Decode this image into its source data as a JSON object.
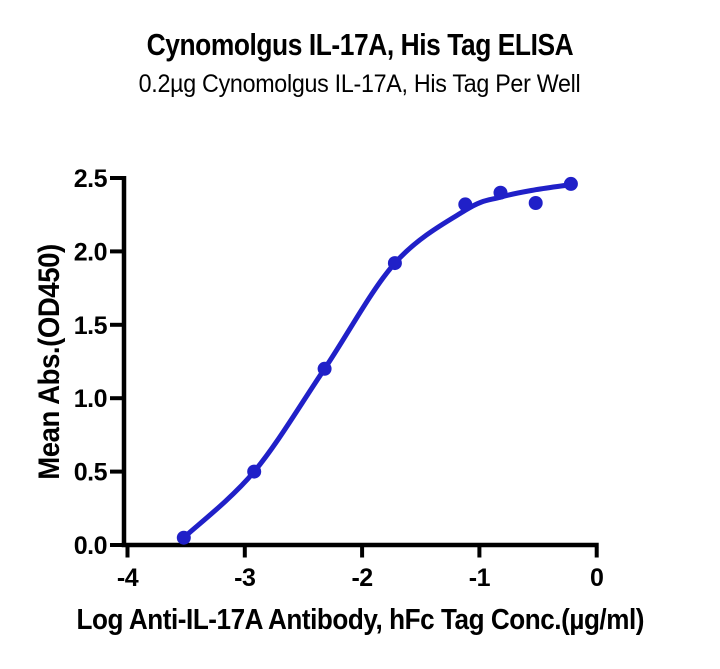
{
  "page": {
    "background_color": "#ffffff",
    "text_color": "#000000"
  },
  "chart_data": {
    "type": "scatter",
    "title": "Cynomolgus IL-17A, His Tag ELISA",
    "subtitle": "0.2µg Cynomolgus IL-17A, His Tag Per Well",
    "xlabel": "Log Anti-IL-17A Antibody, hFc Tag Conc.(µg/ml)",
    "ylabel": "Mean Abs.(OD450)",
    "xlim": [
      -4,
      0
    ],
    "ylim": [
      0,
      2.5
    ],
    "x_ticks": [
      -4,
      -3,
      -2,
      -1,
      0
    ],
    "x_tick_labels": [
      "-4",
      "-3",
      "-2",
      "-1",
      "0"
    ],
    "y_ticks": [
      0,
      0.5,
      1,
      1.5,
      2,
      2.5
    ],
    "y_tick_labels": [
      "0.0",
      "0.5",
      "1.0",
      "1.5",
      "2.0",
      "2.5"
    ],
    "grid": false,
    "legend_position": "none",
    "axis_color": "#000000",
    "series": [
      {
        "marker_color": "#2020c8",
        "line_color": "#2020c8",
        "marker": "circle",
        "points": [
          {
            "x": -3.52,
            "y": 0.05
          },
          {
            "x": -2.92,
            "y": 0.5
          },
          {
            "x": -2.32,
            "y": 1.2
          },
          {
            "x": -1.72,
            "y": 1.92
          },
          {
            "x": -1.12,
            "y": 2.32
          },
          {
            "x": -0.82,
            "y": 2.4
          },
          {
            "x": -0.52,
            "y": 2.33
          },
          {
            "x": -0.22,
            "y": 2.46
          }
        ],
        "fit_curve": [
          {
            "x": -3.52,
            "y": 0.05
          },
          {
            "x": -2.92,
            "y": 0.5
          },
          {
            "x": -2.32,
            "y": 1.2
          },
          {
            "x": -1.72,
            "y": 1.92
          },
          {
            "x": -1.12,
            "y": 2.28
          },
          {
            "x": -0.82,
            "y": 2.37
          },
          {
            "x": -0.52,
            "y": 2.42
          },
          {
            "x": -0.22,
            "y": 2.455
          }
        ]
      }
    ]
  }
}
